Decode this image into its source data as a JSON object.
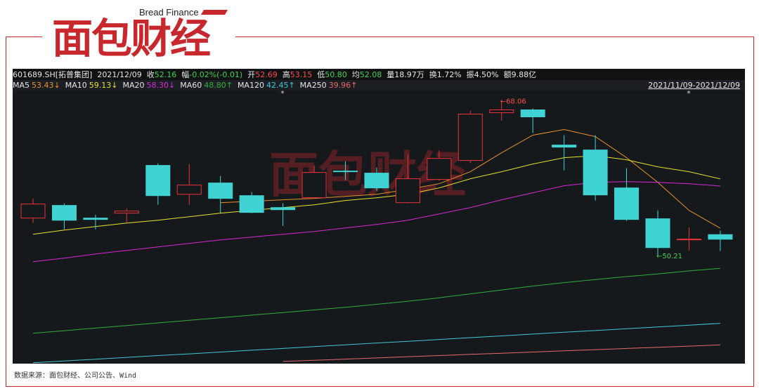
{
  "brand": {
    "tagline": "Bread Finance",
    "name": "面包财经"
  },
  "source": "数据来源：面包财经、公司公告、Wind",
  "chart_data": {
    "type": "candlestick",
    "header": {
      "code": "601689.SH[拓普集团]",
      "date": "2021/12/09",
      "items": [
        {
          "label": "收",
          "value": "52.16",
          "color": "#3fd34f"
        },
        {
          "label": "幅",
          "value": "-0.02%(-0.01)",
          "color": "#3fd34f"
        },
        {
          "label": "开",
          "value": "52.69",
          "color": "#ff4b4b"
        },
        {
          "label": "高",
          "value": "53.15",
          "color": "#ff4b4b"
        },
        {
          "label": "低",
          "value": "50.80",
          "color": "#3fd34f"
        },
        {
          "label": "均",
          "value": "52.08",
          "color": "#3fd34f"
        },
        {
          "label": "量",
          "value": "18.97万",
          "color": "#e6e6e6"
        },
        {
          "label": "换",
          "value": "1.72%",
          "color": "#e6e6e6"
        },
        {
          "label": "振",
          "value": "4.50%",
          "color": "#e6e6e6"
        },
        {
          "label": "额",
          "value": "9.88亿",
          "color": "#e6e6e6"
        }
      ]
    },
    "date_range": "2021/11/09-2021/12/09",
    "marker_text": "*",
    "up_color": "#e8333a",
    "down_color": "#3fd3d3",
    "open": [
      54.6,
      56.06,
      54.6,
      55.17,
      60.68,
      57.35,
      58.65,
      57.19,
      55.81,
      56.95,
      60.03,
      59.79,
      56.38,
      59.06,
      61.25,
      66.76,
      67.09,
      63.03,
      62.46,
      58.08,
      54.52,
      52.09,
      52.69
    ],
    "high": [
      56.87,
      56.3,
      55.0,
      55.73,
      60.92,
      60.84,
      59.46,
      57.6,
      56.3,
      60.68,
      61.17,
      60.44,
      61.9,
      62.38,
      67.0,
      68.06,
      67.25,
      64.17,
      64.17,
      60.36,
      55.49,
      53.54,
      53.15
    ],
    "low": [
      54.03,
      53.3,
      53.3,
      54.03,
      56.14,
      56.14,
      55.17,
      55.17,
      53.7,
      56.87,
      58.98,
      57.76,
      56.3,
      58.9,
      60.97,
      65.87,
      64.41,
      60.11,
      56.63,
      54.27,
      50.21,
      50.87,
      50.8
    ],
    "close": [
      56.22,
      54.35,
      54.44,
      55.41,
      57.19,
      58.41,
      56.87,
      55.25,
      55.57,
      59.87,
      59.95,
      58.08,
      59.14,
      61.49,
      66.6,
      67.09,
      66.28,
      62.79,
      57.27,
      54.44,
      51.19,
      52.17,
      52.16
    ],
    "annotations": [
      {
        "text": "←68.06",
        "index": 15,
        "value": 68.06,
        "color": "#ff4b4b"
      },
      {
        "text": "←50.21",
        "index": 20,
        "value": 50.21,
        "color": "#3fd34f"
      }
    ],
    "series": [
      {
        "name": "MA5",
        "last_label": "53.43↓",
        "color": "#e8902a",
        "values": [
          null,
          null,
          null,
          null,
          null,
          null,
          56.38,
          56.54,
          56.71,
          56.87,
          57.11,
          57.35,
          57.92,
          58.57,
          59.95,
          62.14,
          64.17,
          64.82,
          64.0,
          61.57,
          58.73,
          55.49,
          53.43
        ]
      },
      {
        "name": "MA10",
        "last_label": "59.13↓",
        "color": "#e8e02a",
        "values": [
          52.73,
          53.22,
          53.62,
          54.03,
          54.35,
          54.76,
          55.17,
          55.49,
          55.81,
          56.14,
          56.63,
          56.95,
          57.35,
          58.08,
          59.14,
          59.95,
          60.84,
          61.57,
          61.81,
          61.33,
          60.52,
          59.95,
          59.13
        ]
      },
      {
        "name": "MA20",
        "last_label": "58.30↓",
        "color": "#d42ad4",
        "values": [
          49.57,
          49.97,
          50.46,
          50.87,
          51.27,
          51.68,
          52.08,
          52.41,
          52.73,
          53.06,
          53.46,
          53.87,
          54.35,
          55.08,
          55.81,
          56.71,
          57.52,
          58.33,
          58.73,
          58.81,
          58.73,
          58.57,
          58.3
        ]
      },
      {
        "name": "MA60",
        "last_label": "48.80↑",
        "color": "#2fae3a",
        "values": [
          41.3,
          41.6,
          41.9,
          42.2,
          42.5,
          42.8,
          43.1,
          43.4,
          43.7,
          44.0,
          44.3,
          44.65,
          45.0,
          45.4,
          45.85,
          46.3,
          46.75,
          47.15,
          47.5,
          47.85,
          48.15,
          48.5,
          48.8
        ]
      },
      {
        "name": "MA120",
        "last_label": "42.45↑",
        "color": "#3fc8d8",
        "values": [
          37.9,
          38.11,
          38.31,
          38.52,
          38.73,
          38.93,
          39.14,
          39.35,
          39.55,
          39.76,
          39.97,
          40.18,
          40.38,
          40.59,
          40.8,
          41.0,
          41.21,
          41.42,
          41.62,
          41.83,
          42.04,
          42.24,
          42.45
        ]
      },
      {
        "name": "MA250",
        "last_label": "39.96↑",
        "color": "#e86a6a",
        "values": [
          null,
          null,
          null,
          null,
          null,
          null,
          null,
          null,
          38.05,
          38.19,
          38.32,
          38.46,
          38.6,
          38.73,
          38.87,
          39.0,
          39.14,
          39.28,
          39.41,
          39.55,
          39.69,
          39.82,
          39.96
        ]
      }
    ],
    "ylim": [
      37.8,
      69.4
    ]
  }
}
